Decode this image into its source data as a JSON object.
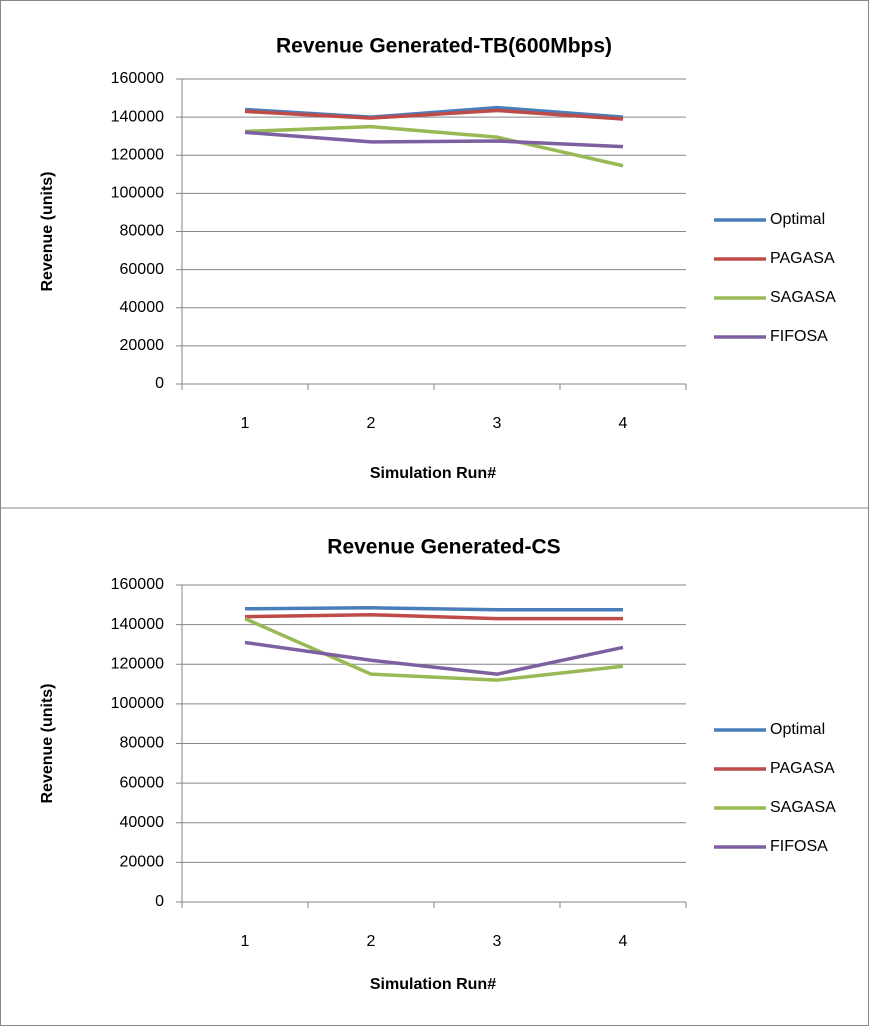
{
  "chart_data": [
    {
      "type": "line",
      "title": "Revenue Generated-TB(600Mbps)",
      "x_label": "Simulation Run#",
      "y_label": "Revenue (units)",
      "categories": [
        "1",
        "2",
        "3",
        "4"
      ],
      "series": [
        {
          "name": "Optimal",
          "color": "#4a7ebb",
          "values": [
            144000,
            140000,
            145000,
            140000
          ]
        },
        {
          "name": "PAGASA",
          "color": "#be4b48",
          "values": [
            143000,
            139500,
            143500,
            139000
          ]
        },
        {
          "name": "SAGASA",
          "color": "#98b954",
          "values": [
            132500,
            135000,
            129500,
            114500
          ]
        },
        {
          "name": "FIFOSA",
          "color": "#7d60a0",
          "values": [
            132000,
            127000,
            127500,
            124500
          ]
        }
      ],
      "ylim": [
        0,
        160000
      ],
      "yticks": [
        0,
        20000,
        40000,
        60000,
        80000,
        100000,
        120000,
        140000,
        160000
      ],
      "grid": true,
      "legend": "right"
    },
    {
      "type": "line",
      "title": "Revenue Generated-CS",
      "x_label": "Simulation Run#",
      "y_label": "Revenue (units)",
      "categories": [
        "1",
        "2",
        "3",
        "4"
      ],
      "series": [
        {
          "name": "Optimal",
          "color": "#4a7ebb",
          "values": [
            148000,
            148500,
            147500,
            147500
          ]
        },
        {
          "name": "PAGASA",
          "color": "#be4b48",
          "values": [
            144000,
            145000,
            143000,
            143000
          ]
        },
        {
          "name": "SAGASA",
          "color": "#98b954",
          "values": [
            143000,
            115000,
            112000,
            119000
          ]
        },
        {
          "name": "FIFOSA",
          "color": "#7d60a0",
          "values": [
            131000,
            122000,
            115000,
            128500
          ]
        }
      ],
      "ylim": [
        0,
        160000
      ],
      "yticks": [
        0,
        20000,
        40000,
        60000,
        80000,
        100000,
        120000,
        140000,
        160000
      ],
      "grid": true,
      "legend": "right"
    }
  ]
}
